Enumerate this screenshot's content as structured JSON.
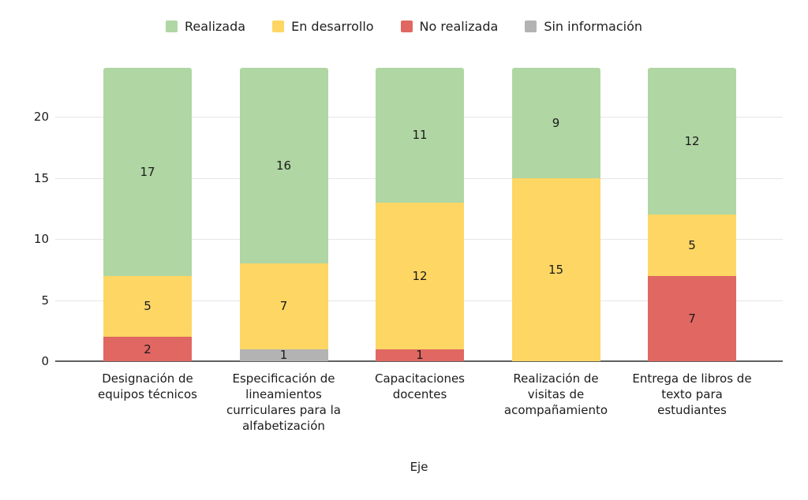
{
  "chart_data": {
    "type": "bar",
    "stacked": true,
    "orientation": "vertical",
    "title": "",
    "xlabel": "Eje",
    "ylabel": "",
    "ylim": [
      0,
      24
    ],
    "yticks": [
      0,
      5,
      10,
      15,
      20
    ],
    "grid": true,
    "legend_position": "top",
    "categories": [
      "Designación de equipos técnicos",
      "Especificación de lineamientos curriculares para la alfabetización",
      "Capacitaciones docentes",
      "Realización de visitas de acompañamiento",
      "Entrega de libros de texto para estudiantes"
    ],
    "series": [
      {
        "name": "Realizada",
        "color": "#b0d6a3",
        "values": [
          17,
          16,
          11,
          9,
          12
        ]
      },
      {
        "name": "En desarrollo",
        "color": "#fdd664",
        "values": [
          5,
          7,
          12,
          15,
          5
        ]
      },
      {
        "name": "No realizada",
        "color": "#e06762",
        "values": [
          2,
          0,
          1,
          0,
          7
        ]
      },
      {
        "name": "Sin información",
        "color": "#b3b3b3",
        "values": [
          0,
          1,
          0,
          0,
          0
        ]
      }
    ],
    "stack_order_bottom_to_top": [
      "Sin información",
      "No realizada",
      "En desarrollo",
      "Realizada"
    ]
  },
  "colors": {
    "grid": "#e6e6e6",
    "axis": "#616161",
    "text": "#1c1c1c"
  }
}
